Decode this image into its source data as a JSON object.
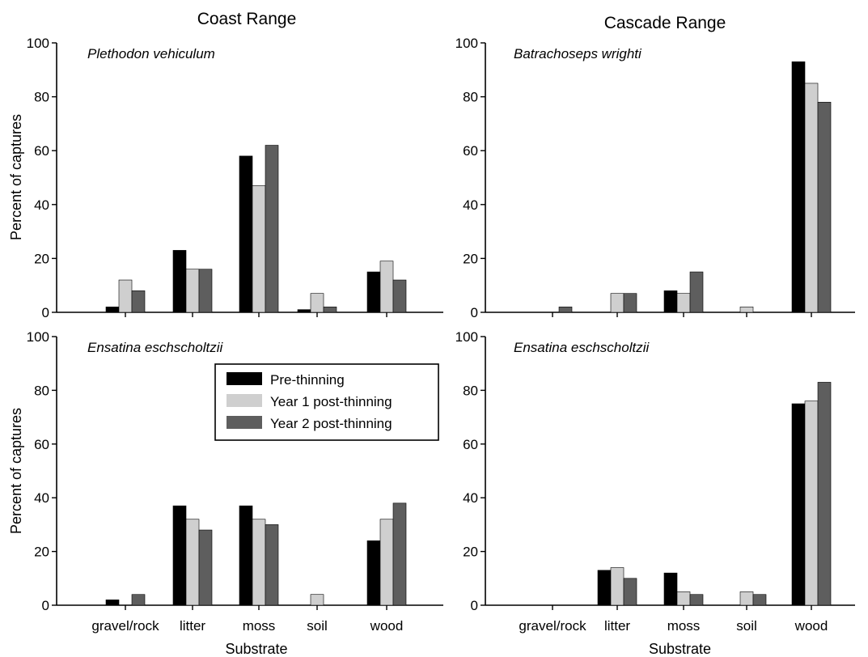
{
  "figure": {
    "column_titles": [
      "Coast Range",
      "Cascade Range"
    ],
    "ylabel": "Percent of captures",
    "xlabel": "Substrate",
    "legend": [
      "Pre-thinning",
      "Year 1 post-thinning",
      "Year 2 post-thinning"
    ],
    "colors": {
      "Pre-thinning": "#000000",
      "Year 1 post-thinning": "#cfcfcf",
      "Year 2 post-thinning": "#5e5e5e"
    }
  },
  "chart_data": [
    {
      "type": "bar",
      "panel": "top-left",
      "title": "Coast Range",
      "species": "Plethodon vehiculum",
      "categories": [
        "gravel/rock",
        "litter",
        "moss",
        "soil",
        "wood"
      ],
      "series": [
        {
          "name": "Pre-thinning",
          "values": [
            2,
            23,
            58,
            1,
            15
          ]
        },
        {
          "name": "Year 1 post-thinning",
          "values": [
            12,
            16,
            47,
            7,
            19
          ]
        },
        {
          "name": "Year 2 post-thinning",
          "values": [
            8,
            16,
            62,
            2,
            12
          ]
        }
      ],
      "ylim": [
        0,
        100
      ],
      "yticks": [
        0,
        20,
        40,
        60,
        80,
        100
      ],
      "ylabel": "Percent of captures",
      "xlabel": ""
    },
    {
      "type": "bar",
      "panel": "top-right",
      "title": "Cascade Range",
      "species": "Batrachoseps wrighti",
      "categories": [
        "gravel/rock",
        "litter",
        "moss",
        "soil",
        "wood"
      ],
      "series": [
        {
          "name": "Pre-thinning",
          "values": [
            0,
            0,
            8,
            0,
            93
          ]
        },
        {
          "name": "Year 1 post-thinning",
          "values": [
            0,
            7,
            7,
            2,
            85
          ]
        },
        {
          "name": "Year 2 post-thinning",
          "values": [
            2,
            7,
            15,
            0,
            78
          ]
        }
      ],
      "ylim": [
        0,
        100
      ],
      "yticks": [
        0,
        20,
        40,
        60,
        80,
        100
      ],
      "ylabel": "",
      "xlabel": ""
    },
    {
      "type": "bar",
      "panel": "bottom-left",
      "title": "",
      "species": "Ensatina eschscholtzii",
      "categories": [
        "gravel/rock",
        "litter",
        "moss",
        "soil",
        "wood"
      ],
      "series": [
        {
          "name": "Pre-thinning",
          "values": [
            2,
            37,
            37,
            0,
            24
          ]
        },
        {
          "name": "Year 1 post-thinning",
          "values": [
            0,
            32,
            32,
            4,
            32
          ]
        },
        {
          "name": "Year 2 post-thinning",
          "values": [
            4,
            28,
            30,
            0,
            38
          ]
        }
      ],
      "ylim": [
        0,
        100
      ],
      "yticks": [
        0,
        20,
        40,
        60,
        80,
        100
      ],
      "ylabel": "Percent of captures",
      "xlabel": "Substrate",
      "legend": "upper-right"
    },
    {
      "type": "bar",
      "panel": "bottom-right",
      "title": "",
      "species": "Ensatina eschscholtzii",
      "categories": [
        "gravel/rock",
        "litter",
        "moss",
        "soil",
        "wood"
      ],
      "series": [
        {
          "name": "Pre-thinning",
          "values": [
            0,
            13,
            12,
            0,
            75
          ]
        },
        {
          "name": "Year 1 post-thinning",
          "values": [
            0,
            14,
            5,
            5,
            76
          ]
        },
        {
          "name": "Year 2 post-thinning",
          "values": [
            0,
            10,
            4,
            4,
            83
          ]
        }
      ],
      "ylim": [
        0,
        100
      ],
      "yticks": [
        0,
        20,
        40,
        60,
        80,
        100
      ],
      "ylabel": "",
      "xlabel": "Substrate"
    }
  ]
}
